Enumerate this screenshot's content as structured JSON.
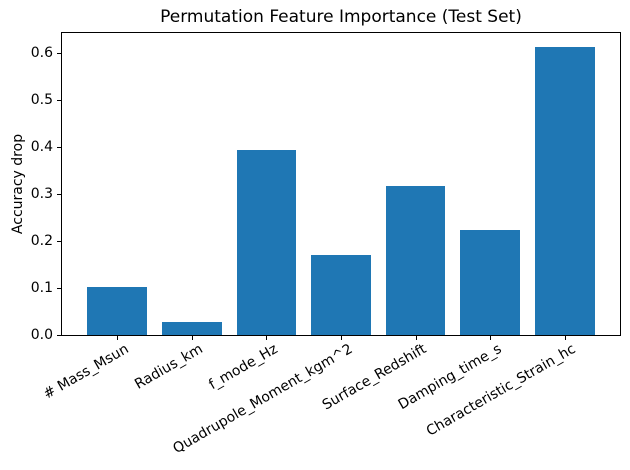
{
  "figure": {
    "title": "Permutation Feature Importance (Test Set)"
  },
  "chart_data": {
    "type": "bar",
    "title": "Permutation Feature Importance (Test Set)",
    "xlabel": "",
    "ylabel": "Accuracy drop",
    "categories": [
      "# Mass_Msun",
      "Radius_km",
      "f_mode_Hz",
      "Quadrupole_Moment_kgm^2",
      "Surface_Redshift",
      "Damping_time_s",
      "Characteristic_Strain_hc"
    ],
    "values": [
      0.102,
      0.027,
      0.394,
      0.171,
      0.317,
      0.224,
      0.612
    ],
    "ylim": [
      0,
      0.6426
    ],
    "yticks": [
      0.0,
      0.1,
      0.2,
      0.3,
      0.4,
      0.5,
      0.6
    ],
    "ytick_labels": [
      "0.0",
      "0.1",
      "0.2",
      "0.3",
      "0.4",
      "0.5",
      "0.6"
    ],
    "bar_color": "#1f77b4",
    "bar_width_fraction": 0.8,
    "x_margin": 0.74,
    "xtick_rotation_deg": 30,
    "grid": false,
    "legend": "none"
  }
}
